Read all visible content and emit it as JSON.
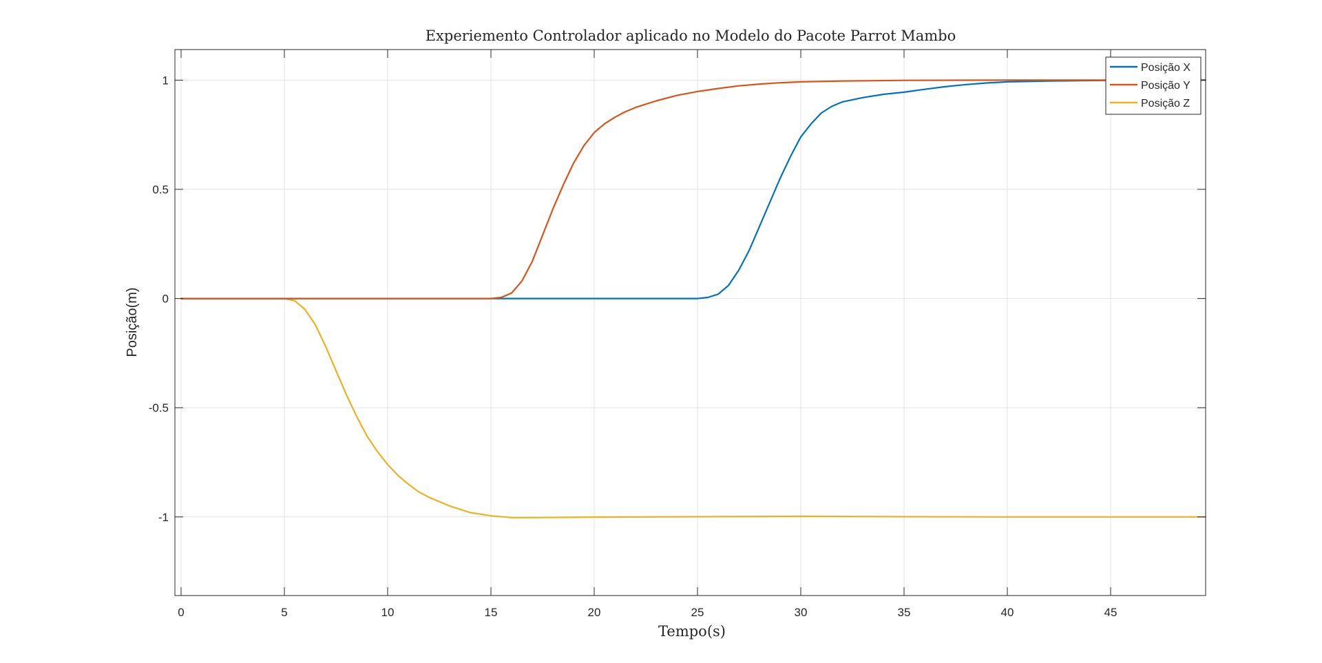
{
  "chart_data": {
    "type": "line",
    "title": "Experiemento Controlador aplicado no Modelo do Pacote Parrot Mambo",
    "xlabel": "Tempo(s)",
    "ylabel": "Posição(m)",
    "xlim": [
      -0.3,
      49.6
    ],
    "ylim": [
      -1.36,
      1.14
    ],
    "xticks": [
      0,
      5,
      10,
      15,
      20,
      25,
      30,
      35,
      40,
      45
    ],
    "yticks": [
      1,
      0.5,
      0,
      -0.5,
      -1
    ],
    "ytick_labels": [
      "1",
      "0.5",
      "0",
      "-0.5",
      "-1"
    ],
    "grid": true,
    "legend_position": "top-right",
    "series": [
      {
        "name": "Posição X",
        "color": "#0072BD",
        "x": [
          0,
          25,
          25.5,
          26,
          26.5,
          27,
          27.5,
          28,
          28.5,
          29,
          29.5,
          30,
          30.5,
          31,
          31.5,
          32,
          33,
          34,
          35,
          36,
          37,
          38,
          39,
          40,
          42,
          44,
          46,
          48,
          49.6
        ],
        "y": [
          0,
          0,
          0.005,
          0.02,
          0.06,
          0.13,
          0.22,
          0.33,
          0.44,
          0.55,
          0.65,
          0.74,
          0.8,
          0.85,
          0.88,
          0.9,
          0.92,
          0.935,
          0.945,
          0.958,
          0.97,
          0.98,
          0.987,
          0.992,
          0.996,
          0.998,
          1.0,
          1.0,
          1.0
        ]
      },
      {
        "name": "Posição Y",
        "color": "#D95319",
        "x": [
          0,
          15,
          15.5,
          16,
          16.5,
          17,
          17.5,
          18,
          18.5,
          19,
          19.5,
          20,
          20.5,
          21,
          21.5,
          22,
          23,
          24,
          25,
          26,
          27,
          28,
          29,
          30,
          32,
          35,
          40,
          45,
          49.6
        ],
        "y": [
          0,
          0,
          0.005,
          0.025,
          0.08,
          0.17,
          0.29,
          0.41,
          0.52,
          0.62,
          0.7,
          0.76,
          0.8,
          0.83,
          0.855,
          0.875,
          0.905,
          0.93,
          0.948,
          0.962,
          0.974,
          0.982,
          0.988,
          0.992,
          0.996,
          0.999,
          1.0,
          1.0,
          1.0
        ]
      },
      {
        "name": "Posição Z",
        "color": "#EDB120",
        "x": [
          0,
          5,
          5.5,
          6,
          6.5,
          7,
          7.5,
          8,
          8.5,
          9,
          9.5,
          10,
          10.5,
          11,
          11.5,
          12,
          13,
          14,
          15,
          16,
          17,
          20,
          25,
          30,
          35,
          40,
          45,
          49.6
        ],
        "y": [
          0,
          0,
          -0.01,
          -0.05,
          -0.12,
          -0.22,
          -0.33,
          -0.44,
          -0.54,
          -0.63,
          -0.7,
          -0.76,
          -0.81,
          -0.85,
          -0.885,
          -0.91,
          -0.95,
          -0.98,
          -0.995,
          -1.003,
          -1.003,
          -1.001,
          -0.999,
          -0.997,
          -0.999,
          -1.0,
          -1.0,
          -1.0
        ]
      }
    ]
  }
}
